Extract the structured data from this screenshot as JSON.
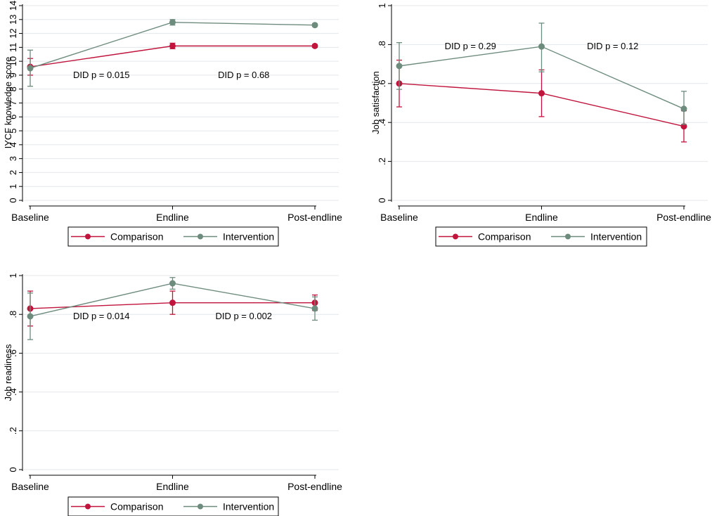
{
  "chart_data": [
    {
      "id": "knowledge",
      "type": "line",
      "title": "",
      "xlabel": "",
      "ylabel": "IYCF knowledge score",
      "categories": [
        "Baseline",
        "Endline",
        "Post-endline"
      ],
      "ylim": [
        0,
        14
      ],
      "yticks": [
        0,
        1,
        2,
        3,
        4,
        5,
        6,
        7,
        8,
        9,
        10,
        11,
        12,
        13,
        14
      ],
      "ytick_labels": [
        "0",
        "1",
        "2",
        "3",
        "4",
        "5",
        "6",
        "7",
        "8",
        "9",
        "10",
        "11",
        "12",
        "13",
        "14"
      ],
      "grid": true,
      "series": [
        {
          "name": "Comparison",
          "color": "#c0143c",
          "values": [
            9.6,
            11.1,
            11.1
          ],
          "ci_low": [
            9.0,
            10.9,
            11.0
          ],
          "ci_high": [
            10.2,
            11.3,
            11.2
          ]
        },
        {
          "name": "Intervention",
          "color": "#6e8c7e",
          "values": [
            9.5,
            12.8,
            12.6
          ],
          "ci_low": [
            8.2,
            12.6,
            12.5
          ],
          "ci_high": [
            10.8,
            13.0,
            12.7
          ]
        }
      ],
      "annotations": [
        {
          "text": "DID p = 0.015",
          "x": 0.5,
          "y": 9.0
        },
        {
          "text": "DID p = 0.68",
          "x": 1.5,
          "y": 9.0
        }
      ],
      "legend": {
        "position": "bottom",
        "items": [
          "Comparison",
          "Intervention"
        ]
      }
    },
    {
      "id": "satisfaction",
      "type": "line",
      "title": "",
      "xlabel": "",
      "ylabel": "Job satisfaction",
      "categories": [
        "Baseline",
        "Endline",
        "Post-endline"
      ],
      "ylim": [
        0,
        1
      ],
      "yticks": [
        0,
        0.2,
        0.4,
        0.6,
        0.8,
        1
      ],
      "ytick_labels": [
        "0",
        ".2",
        ".4",
        ".6",
        ".8",
        "1"
      ],
      "grid": true,
      "series": [
        {
          "name": "Comparison",
          "color": "#c0143c",
          "values": [
            0.6,
            0.55,
            0.38
          ],
          "ci_low": [
            0.48,
            0.43,
            0.3
          ],
          "ci_high": [
            0.72,
            0.67,
            0.46
          ]
        },
        {
          "name": "Intervention",
          "color": "#6e8c7e",
          "values": [
            0.69,
            0.79,
            0.47
          ],
          "ci_low": [
            0.57,
            0.66,
            0.39
          ],
          "ci_high": [
            0.81,
            0.91,
            0.56
          ]
        }
      ],
      "annotations": [
        {
          "text": "DID p = 0.29",
          "x": 0.5,
          "y": 0.79
        },
        {
          "text": "DID p = 0.12",
          "x": 1.5,
          "y": 0.79
        }
      ],
      "legend": {
        "position": "bottom",
        "items": [
          "Comparison",
          "Intervention"
        ]
      }
    },
    {
      "id": "readiness",
      "type": "line",
      "title": "",
      "xlabel": "",
      "ylabel": "Job readiness",
      "categories": [
        "Baseline",
        "Endline",
        "Post-endline"
      ],
      "ylim": [
        0,
        1
      ],
      "yticks": [
        0,
        0.2,
        0.4,
        0.6,
        0.8,
        1
      ],
      "ytick_labels": [
        "0",
        ".2",
        ".4",
        ".6",
        ".8",
        "1"
      ],
      "grid": true,
      "series": [
        {
          "name": "Comparison",
          "color": "#c0143c",
          "values": [
            0.83,
            0.86,
            0.86
          ],
          "ci_low": [
            0.74,
            0.8,
            0.82
          ],
          "ci_high": [
            0.92,
            0.92,
            0.9
          ]
        },
        {
          "name": "Intervention",
          "color": "#6e8c7e",
          "values": [
            0.79,
            0.96,
            0.83
          ],
          "ci_low": [
            0.67,
            0.93,
            0.77
          ],
          "ci_high": [
            0.91,
            0.99,
            0.89
          ]
        }
      ],
      "annotations": [
        {
          "text": "DID p = 0.014",
          "x": 0.5,
          "y": 0.79
        },
        {
          "text": "DID p = 0.002",
          "x": 1.5,
          "y": 0.79
        }
      ],
      "legend": {
        "position": "bottom",
        "items": [
          "Comparison",
          "Intervention"
        ]
      }
    }
  ]
}
